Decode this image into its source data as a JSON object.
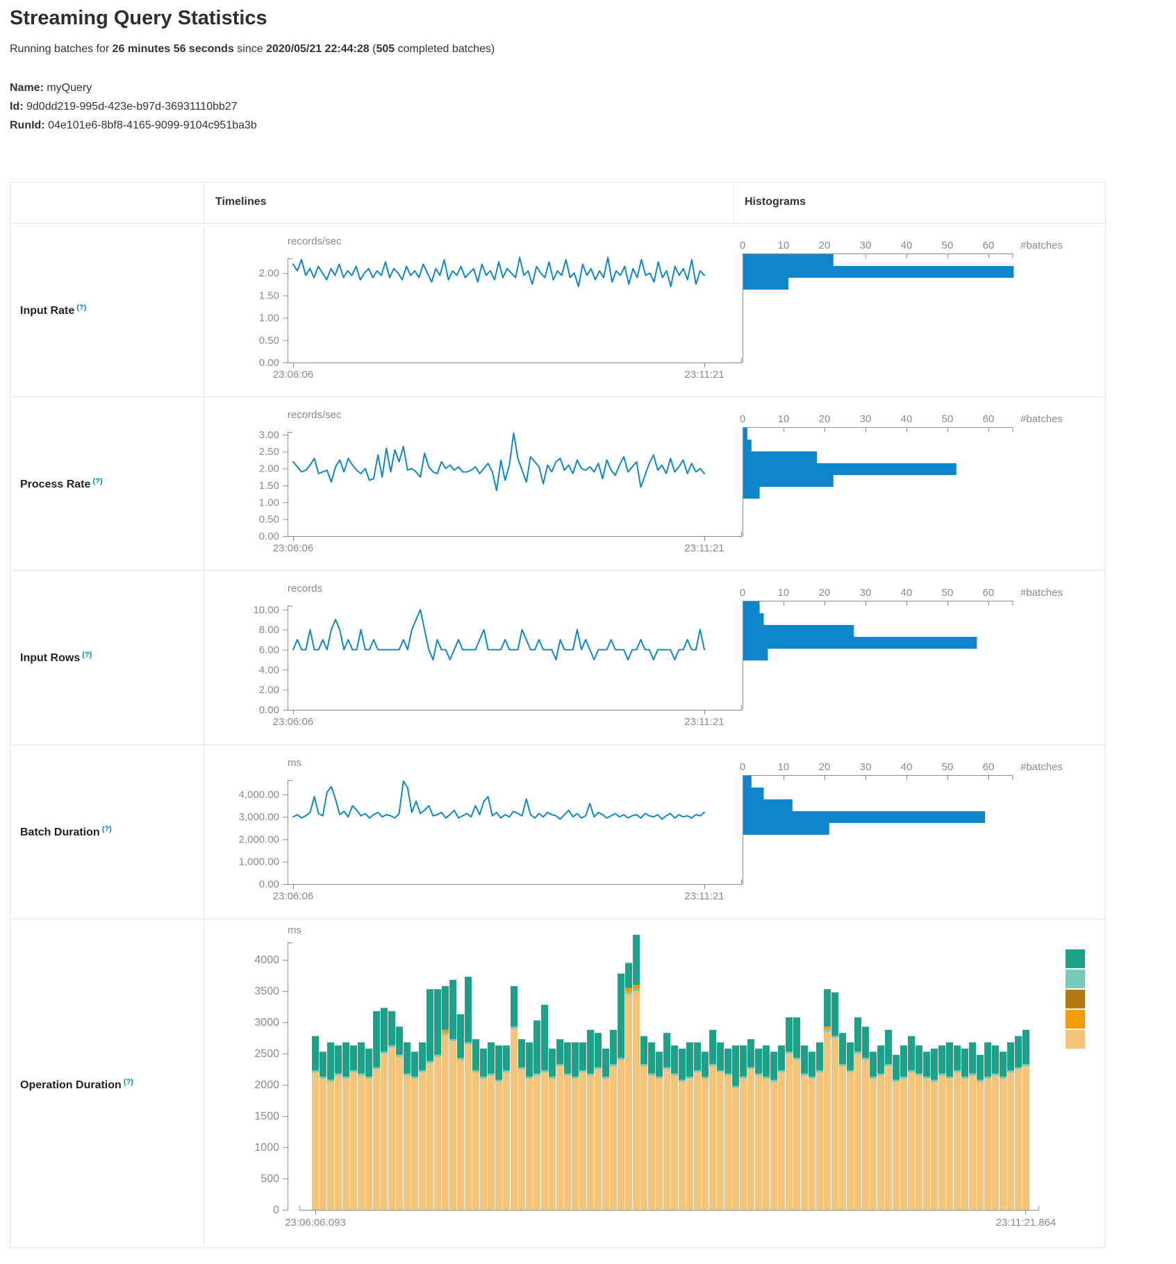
{
  "header": {
    "title": "Streaming Query Statistics",
    "running_prefix": "Running batches for ",
    "duration": "26 minutes 56 seconds",
    "since_infix": " since ",
    "start_time": "2020/05/21 22:44:28",
    "batches_open": " (",
    "completed_batches": "505",
    "batches_suffix": " completed batches)",
    "name_label": "Name:",
    "name_value": " myQuery",
    "id_label": "Id:",
    "id_value": " 9d0dd219-995d-423e-b97d-36931110bb27",
    "runid_label": "RunId:",
    "runid_value": " 04e101e6-8bf8-4165-9099-9104c951ba3b"
  },
  "table": {
    "timelines_header": "Timelines",
    "histograms_header": "Histograms",
    "batches_axis_label": "#batches",
    "help_marker": "(?)"
  },
  "colors": {
    "accent_blue": "#0d87c9",
    "axis_gray": "#8c8c8c",
    "tick_text": "#8a8a8a",
    "stack_teal": "#1da188",
    "stack_light_teal": "#79cab8",
    "stack_brown": "#b5770c",
    "stack_orange": "#f29e0c",
    "stack_tan": "#f6c478",
    "help_blue": "#0088cc",
    "border": "#e2e2e8"
  },
  "chart_data": [
    {
      "key": "input-rate",
      "row_label": "Input Rate",
      "type": "line",
      "unit": "records/sec",
      "x_start_label": "23:06:06",
      "x_end_label": "23:11:21",
      "y_ticks": [
        "2.00",
        "1.50",
        "1.00",
        "0.50",
        "0.00"
      ],
      "y_tick_values": [
        2,
        1.5,
        1,
        0.5,
        0
      ],
      "y_max": 2.33,
      "values": [
        2.2,
        2.05,
        2.3,
        1.95,
        2.1,
        1.9,
        2.15,
        2.0,
        1.85,
        2.1,
        1.95,
        2.2,
        1.9,
        2.05,
        1.95,
        2.15,
        1.85,
        2.0,
        2.1,
        1.9,
        2.05,
        1.95,
        2.25,
        1.9,
        2.1,
        2.0,
        1.85,
        2.15,
        1.95,
        2.05,
        1.9,
        2.2,
        2.0,
        1.8,
        2.1,
        1.95,
        2.3,
        1.85,
        2.05,
        1.95,
        2.15,
        1.9,
        2.0,
        2.1,
        1.8,
        2.2,
        1.95,
        2.05,
        1.85,
        2.25,
        1.9,
        2.1,
        2.0,
        1.9,
        2.35,
        1.95,
        2.05,
        1.75,
        2.15,
        2.0,
        1.9,
        2.25,
        1.85,
        2.05,
        1.95,
        2.3,
        1.9,
        2.0,
        1.7,
        2.2,
        1.95,
        2.1,
        1.85,
        2.05,
        1.9,
        2.35,
        1.8,
        2.05,
        1.95,
        2.15,
        1.75,
        2.1,
        1.9,
        2.3,
        1.95,
        2.0,
        1.8,
        2.25,
        1.9,
        2.05,
        1.7,
        2.15,
        1.95,
        2.1,
        1.85,
        2.3,
        1.75,
        2.05,
        1.95
      ],
      "histogram": {
        "axis_ticks": [
          0,
          10,
          20,
          30,
          40,
          50,
          60
        ],
        "axis_end": 66,
        "bin_counts": [
          22,
          66,
          11
        ]
      }
    },
    {
      "key": "process-rate",
      "row_label": "Process Rate",
      "type": "line",
      "unit": "records/sec",
      "x_start_label": "23:06:06",
      "x_end_label": "23:11:21",
      "y_ticks": [
        "3.00",
        "2.50",
        "2.00",
        "1.50",
        "1.00",
        "0.50",
        "0.00"
      ],
      "y_tick_values": [
        3,
        2.5,
        2,
        1.5,
        1,
        0.5,
        0
      ],
      "y_max": 3.08,
      "values": [
        2.2,
        2.05,
        1.9,
        1.95,
        2.1,
        2.3,
        1.85,
        1.9,
        1.95,
        1.6,
        2.05,
        2.25,
        1.9,
        2.3,
        2.1,
        1.95,
        1.85,
        2.0,
        1.65,
        1.7,
        2.4,
        1.75,
        2.6,
        1.9,
        2.55,
        2.2,
        2.65,
        1.95,
        2.0,
        1.9,
        1.75,
        2.45,
        2.05,
        1.9,
        1.85,
        2.2,
        2.0,
        2.1,
        1.95,
        2.05,
        1.9,
        1.9,
        1.95,
        2.05,
        1.85,
        2.0,
        2.15,
        1.9,
        1.35,
        2.25,
        1.65,
        2.1,
        3.05,
        2.3,
        1.95,
        1.6,
        2.35,
        2.2,
        2.05,
        1.55,
        2.1,
        1.9,
        2.2,
        2.3,
        1.95,
        2.1,
        1.85,
        2.25,
        2.0,
        1.95,
        2.05,
        1.9,
        2.15,
        1.7,
        2.25,
        1.95,
        1.8,
        2.1,
        2.35,
        1.9,
        2.05,
        2.2,
        1.45,
        1.8,
        2.15,
        2.4,
        1.95,
        2.1,
        1.85,
        2.3,
        1.9,
        2.05,
        2.25,
        1.85,
        2.15,
        1.9,
        2.0,
        1.85
      ],
      "histogram": {
        "axis_ticks": [
          0,
          10,
          20,
          30,
          40,
          50,
          60
        ],
        "axis_end": 66,
        "bin_counts": [
          1,
          2,
          18,
          52,
          22,
          4
        ]
      }
    },
    {
      "key": "input-rows",
      "row_label": "Input Rows",
      "type": "line",
      "unit": "records",
      "x_start_label": "23:06:06",
      "x_end_label": "23:11:21",
      "y_ticks": [
        "10.00",
        "8.00",
        "6.00",
        "4.00",
        "2.00",
        "0.00"
      ],
      "y_tick_values": [
        10,
        8,
        6,
        4,
        2,
        0
      ],
      "y_max": 10.4,
      "values": [
        6,
        7,
        6,
        6,
        8,
        6,
        6,
        7,
        6,
        8,
        9,
        8,
        6,
        7,
        6,
        6,
        8,
        6,
        6,
        7,
        6,
        6,
        6,
        6,
        6,
        6,
        7,
        6,
        8,
        9,
        10,
        8,
        6,
        5,
        7,
        6,
        6,
        5,
        6,
        7,
        6,
        6,
        6,
        6,
        7,
        8,
        6,
        6,
        6,
        6,
        7,
        6,
        6,
        6,
        8,
        7,
        6,
        6,
        7,
        6,
        6,
        6,
        5,
        7,
        6,
        6,
        6,
        8,
        6,
        7,
        6,
        5,
        6,
        6,
        6,
        7,
        6,
        6,
        6,
        5,
        6,
        6,
        7,
        6,
        6,
        5,
        6,
        6,
        6,
        6,
        5,
        6,
        6,
        7,
        6,
        6,
        8,
        6
      ],
      "histogram": {
        "axis_ticks": [
          0,
          10,
          20,
          30,
          40,
          50,
          60
        ],
        "axis_end": 66,
        "bin_counts": [
          4,
          5,
          27,
          57,
          6
        ]
      }
    },
    {
      "key": "batch-duration",
      "row_label": "Batch Duration",
      "type": "line",
      "unit": "ms",
      "x_start_label": "23:06:06",
      "x_end_label": "23:11:21",
      "y_ticks": [
        "4,000.00",
        "3,000.00",
        "2,000.00",
        "1,000.00",
        "0.00"
      ],
      "y_tick_values": [
        4000,
        3000,
        2000,
        1000,
        0
      ],
      "y_max": 4650,
      "values": [
        3000,
        3100,
        2950,
        3050,
        3200,
        3900,
        3150,
        3050,
        4100,
        4350,
        3800,
        3100,
        3250,
        3000,
        3500,
        3300,
        3050,
        3150,
        2950,
        3100,
        3200,
        3000,
        3100,
        3050,
        2950,
        3150,
        4600,
        4300,
        3200,
        3700,
        3150,
        3300,
        3500,
        3050,
        3100,
        3200,
        2950,
        3100,
        3300,
        2950,
        3050,
        3150,
        3000,
        3500,
        3100,
        3700,
        3900,
        3050,
        3200,
        2950,
        3100,
        3000,
        3250,
        3150,
        3050,
        3800,
        3100,
        2950,
        3150,
        3000,
        3200,
        3100,
        3050,
        2900,
        3100,
        3300,
        3000,
        3150,
        2950,
        3050,
        3600,
        3000,
        3200,
        3100,
        2950,
        3050,
        3150,
        3000,
        3100,
        2950,
        3050,
        3100,
        2950,
        3150,
        3050,
        3000,
        3100,
        2900,
        3050,
        3150,
        2950,
        3100,
        3000,
        3050,
        2950,
        3100,
        3050,
        3200
      ],
      "histogram": {
        "axis_ticks": [
          0,
          10,
          20,
          30,
          40,
          50,
          60
        ],
        "axis_end": 66,
        "bin_counts": [
          2,
          5,
          12,
          59,
          21
        ]
      }
    },
    {
      "key": "operation-duration",
      "row_label": "Operation Duration",
      "type": "stacked-bar",
      "unit": "ms",
      "x_start_label": "23:06:06.093",
      "x_end_label": "23:11:21.864",
      "y_ticks": [
        "4000",
        "3500",
        "3000",
        "2500",
        "2000",
        "1500",
        "1000",
        "500",
        "0"
      ],
      "y_tick_values": [
        4000,
        3500,
        3000,
        2500,
        2000,
        1500,
        1000,
        500,
        0
      ],
      "y_max": 4400,
      "legend_color_keys": [
        "stack_teal",
        "stack_light_teal",
        "stack_brown",
        "stack_orange",
        "stack_tan"
      ],
      "light_teal_const": 30,
      "orange_overrides": {
        "17": 50,
        "41": 70,
        "42": 70,
        "67": 50
      },
      "tan_values": [
        2200,
        2100,
        2050,
        2150,
        2100,
        2200,
        2150,
        2100,
        2250,
        2500,
        2600,
        2450,
        2150,
        2100,
        2200,
        2350,
        2450,
        2800,
        2700,
        2400,
        2650,
        2200,
        2100,
        2150,
        2050,
        2200,
        2900,
        2250,
        2100,
        2150,
        2200,
        2100,
        2300,
        2150,
        2100,
        2200,
        2150,
        2250,
        2100,
        2300,
        2400,
        3450,
        3500,
        2300,
        2150,
        2100,
        2250,
        2150,
        2050,
        2100,
        2200,
        2100,
        2300,
        2200,
        2150,
        1950,
        2100,
        2250,
        2150,
        2100,
        2050,
        2200,
        2500,
        2400,
        2150,
        2100,
        2200,
        2850,
        2750,
        2300,
        2200,
        2500,
        2400,
        2100,
        2150,
        2300,
        2050,
        2100,
        2200,
        2150,
        2100,
        2050,
        2150,
        2100,
        2200,
        2100,
        2150,
        2050,
        2100,
        2150,
        2100,
        2200,
        2250,
        2300
      ],
      "teal_values": [
        550,
        400,
        600,
        450,
        550,
        400,
        500,
        450,
        900,
        700,
        550,
        450,
        500,
        400,
        450,
        1150,
        1050,
        700,
        950,
        700,
        1050,
        500,
        450,
        500,
        550,
        400,
        650,
        450,
        550,
        850,
        1050,
        450,
        400,
        500,
        550,
        450,
        700,
        550,
        450,
        550,
        1350,
        400,
        800,
        450,
        500,
        400,
        550,
        450,
        500,
        550,
        450,
        400,
        550,
        450,
        400,
        650,
        500,
        450,
        400,
        500,
        450,
        400,
        550,
        650,
        450,
        400,
        450,
        600,
        700,
        500,
        450,
        550,
        500,
        400,
        450,
        550,
        400,
        500,
        550,
        450,
        400,
        500,
        450,
        550,
        400,
        450,
        500,
        400,
        550,
        450,
        400,
        450,
        500,
        550
      ]
    }
  ]
}
